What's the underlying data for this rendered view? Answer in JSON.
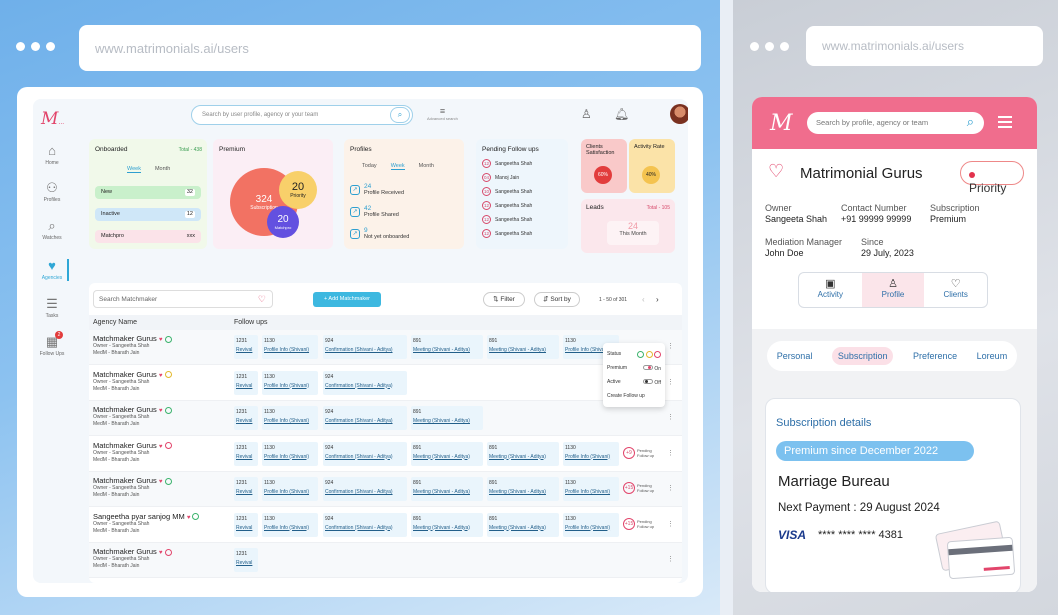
{
  "browser_left": {
    "url": "www.matrimonials.ai/users"
  },
  "browser_right": {
    "url": "www.matrimonials.ai/users"
  },
  "dashboard": {
    "logo": "M",
    "search_placeholder": "Search by user profile, agency or your team",
    "advanced_search": "Advanced search",
    "nav": [
      {
        "label": "Home"
      },
      {
        "label": "Profiles"
      },
      {
        "label": "Watches"
      },
      {
        "label": "Agencies"
      },
      {
        "label": "Tasks"
      },
      {
        "label": "Follow Ups",
        "badge": "2"
      }
    ],
    "onboarded": {
      "title": "Onboarded",
      "total": "Total - 438",
      "tabs": [
        "Week",
        "Month"
      ],
      "rows": [
        {
          "label": "New",
          "value": "32"
        },
        {
          "label": "Inactive",
          "value": "12"
        },
        {
          "label": "Matchpro",
          "value": "xxx"
        }
      ]
    },
    "premium": {
      "title": "Premium",
      "subscription_count": "324",
      "subscription_label": "Subscription",
      "priority_count": "20",
      "priority_label": "Priority",
      "matchpro_count": "20",
      "matchpro_label": "Matchpro"
    },
    "profiles": {
      "title": "Profiles",
      "tabs": [
        "Today",
        "Week",
        "Month"
      ],
      "rows": [
        {
          "count": "24",
          "label": "Profile Received"
        },
        {
          "count": "42",
          "label": "Profile Shared"
        },
        {
          "count": "9",
          "label": "Not yet onboarded"
        }
      ]
    },
    "pending": {
      "title": "Pending Follow ups",
      "rows": [
        {
          "count": "12",
          "name": "Sangeetha Shah"
        },
        {
          "count": "04",
          "name": "Manoj Jain"
        },
        {
          "count": "10",
          "name": "Sangeetha Shah"
        },
        {
          "count": "12",
          "name": "Sangeetha Shah"
        },
        {
          "count": "12",
          "name": "Sangeetha Shah"
        },
        {
          "count": "12",
          "name": "Sangeetha Shah"
        }
      ]
    },
    "clients": {
      "title": "Clients Satisfaction",
      "value": "60%"
    },
    "activity": {
      "title": "Activity Rate",
      "value": "40%"
    },
    "leads": {
      "title": "Leads",
      "total": "Total - 105",
      "count": "24",
      "period": "This Month"
    },
    "table": {
      "search_placeholder": "Search Matchmaker",
      "add_button": "+ Add Matchmaker",
      "filter": "Filter",
      "sort": "Sort by",
      "pagination": "1 - 50 of 301",
      "col_agency": "Agency Name",
      "col_followups": "Follow ups",
      "popup": {
        "status": "Status",
        "premium": "Premium",
        "premium_state": "On",
        "active": "Active",
        "active_state": "Off",
        "create": "Create Follow up"
      },
      "rows": [
        {
          "name": "Matchmaker Gurus",
          "owner": "Owner - Sangeetha Shah",
          "medm": "MedM - Bharath Jain",
          "fu": [
            [
              "1231",
              "Revival"
            ],
            [
              "1130",
              "Profile Info (Shivani)"
            ],
            [
              "924",
              "Confirmation (Shivani - Aditya)"
            ],
            [
              "891",
              "Meeting (Shivani - Aditya)"
            ],
            [
              "891",
              "Meeting (Shivani - Aditya)"
            ],
            [
              "1130",
              "Profile Info (Shivani)"
            ]
          ],
          "pending": ""
        },
        {
          "name": "Matchmaker Gurus",
          "owner": "Owner - Sangeetha Shah",
          "medm": "MedM - Bharath Jain",
          "fu": [
            [
              "1231",
              "Revival"
            ],
            [
              "1130",
              "Profile Info (Shivani)"
            ],
            [
              "924",
              "Confirmation (Shivani - Aditya)"
            ]
          ],
          "pending": ""
        },
        {
          "name": "Matchmaker Gurus",
          "owner": "Owner - Sangeetha Shah",
          "medm": "MedM - Bharath Jain",
          "fu": [
            [
              "1231",
              "Revival"
            ],
            [
              "1130",
              "Profile Info (Shivani)"
            ],
            [
              "924",
              "Confirmation (Shivani - Aditya)"
            ],
            [
              "891",
              "Meeting (Shivani - Aditya)"
            ]
          ],
          "pending": ""
        },
        {
          "name": "Matchmaker Gurus",
          "owner": "Owner - Sangeetha Shah",
          "medm": "MedM - Bharath Jain",
          "fu": [
            [
              "1231",
              "Revival"
            ],
            [
              "1130",
              "Profile Info (Shivani)"
            ],
            [
              "924",
              "Confirmation (Shivani - Aditya)"
            ],
            [
              "891",
              "Meeting (Shivani - Aditya)"
            ],
            [
              "891",
              "Meeting (Shivani - Aditya)"
            ],
            [
              "1130",
              "Profile Info (Shivani)"
            ]
          ],
          "pending": "+9"
        },
        {
          "name": "Matchmaker Gurus",
          "owner": "Owner - Sangeetha Shah",
          "medm": "MedM - Bharath Jain",
          "fu": [
            [
              "1231",
              "Revival"
            ],
            [
              "1130",
              "Profile Info (Shivani)"
            ],
            [
              "924",
              "Confirmation (Shivani - Aditya)"
            ],
            [
              "891",
              "Meeting (Shivani - Aditya)"
            ],
            [
              "891",
              "Meeting (Shivani - Aditya)"
            ],
            [
              "1130",
              "Profile Info (Shivani)"
            ]
          ],
          "pending": "+15"
        },
        {
          "name": "Sangeetha pyar sanjog MM",
          "owner": "Owner - Sangeetha Shah",
          "medm": "MedM - Bharath Jain",
          "fu": [
            [
              "1231",
              "Revival"
            ],
            [
              "1130",
              "Profile Info (Shivani)"
            ],
            [
              "924",
              "Confirmation (Shivani - Aditya)"
            ],
            [
              "891",
              "Meeting (Shivani - Aditya)"
            ],
            [
              "891",
              "Meeting (Shivani - Aditya)"
            ],
            [
              "1130",
              "Profile Info (Shivani)"
            ]
          ],
          "pending": "+15"
        },
        {
          "name": "Matchmaker Gurus",
          "owner": "Owner - Sangeetha Shah",
          "medm": "MedM - Bharath Jain",
          "fu": [
            [
              "1231",
              "Revival"
            ]
          ],
          "pending": ""
        }
      ],
      "pending_label": "Pending Follow up"
    }
  },
  "mobile": {
    "logo": "M",
    "search_placeholder": "Search by profile, agency or team",
    "title": "Matrimonial Gurus",
    "priority": "Priority",
    "owner_label": "Owner",
    "owner": "Sangeeta Shah",
    "contact_label": "Contact Number",
    "contact": "+91 99999 99999",
    "sub_label": "Subscription",
    "sub": "Premium",
    "mediation_label": "Mediation Manager",
    "mediation": "John Doe",
    "since_label": "Since",
    "since": "29 July, 2023",
    "tabs": [
      "Activity",
      "Profile",
      "Clients"
    ],
    "subtabs": [
      "Personal",
      "Subscription",
      "Preference",
      "Loreum"
    ],
    "details_title": "Subscription details",
    "premium_since": "Premium since December 2022",
    "plan": "Marriage Bureau",
    "next_payment": "Next Payment : 29 August 2024",
    "card_brand": "VISA",
    "card_number": "**** **** **** 4381"
  }
}
